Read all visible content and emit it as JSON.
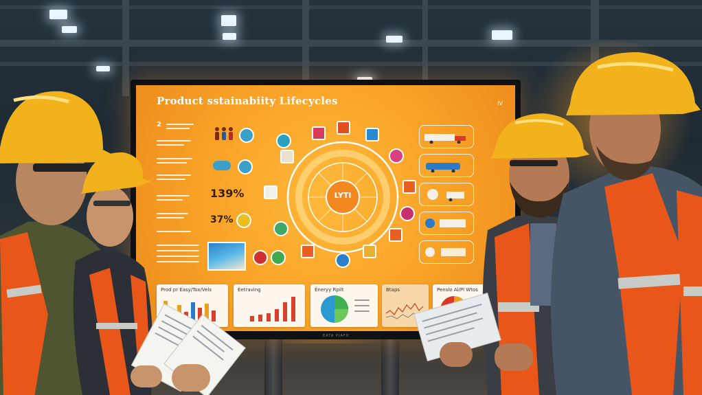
{
  "scene": {
    "description_tag": "factory-meeting",
    "screen_title": "Product sstainabiity Lifecycles",
    "corner_mark": "IV",
    "hub_label": "LYTI",
    "stats": [
      {
        "value": "139%"
      },
      {
        "value": "37%"
      }
    ],
    "row_numbers": [
      "2"
    ],
    "dashboard_cards": [
      {
        "title": "Prod pr Easy/Tox/Vels",
        "type": "bar"
      },
      {
        "title": "Eetraving",
        "type": "bar"
      },
      {
        "title": "Eneryy Rpilt",
        "type": "pie"
      },
      {
        "title": "Btaps",
        "type": "line"
      },
      {
        "title": "Penslo Al/Pl Wtos",
        "type": "pie"
      }
    ],
    "brand_text": "EATA PIAFO"
  },
  "colors": {
    "screen_orange": "#f8a126",
    "hard_hat_yellow": "#f2b21c",
    "vest_orange": "#e8561a",
    "reflective_strip": "#c9ccc6"
  }
}
